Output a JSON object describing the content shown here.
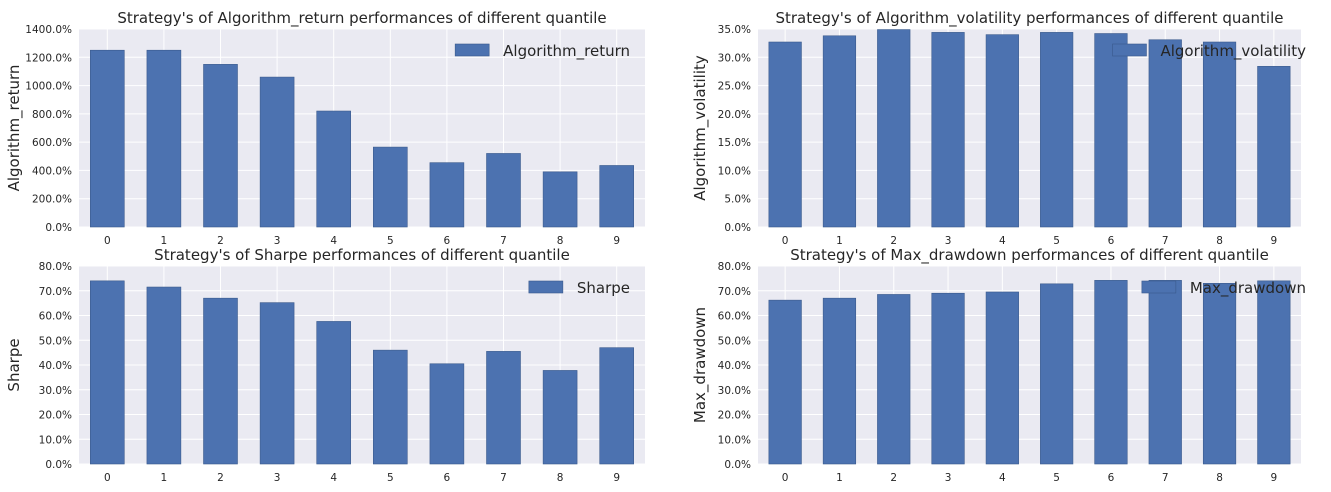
{
  "chart_data": [
    {
      "type": "bar",
      "title": "Strategy's of Algorithm_return performances of different quantile",
      "xlabel": "",
      "ylabel": "Algorithm_return",
      "categories": [
        "0",
        "1",
        "2",
        "3",
        "4",
        "5",
        "6",
        "7",
        "8",
        "9"
      ],
      "series": [
        {
          "name": "Algorithm_return",
          "values": [
            1250,
            1250,
            1150,
            1060,
            820,
            565,
            455,
            520,
            390,
            435
          ]
        }
      ],
      "ylim": [
        0,
        1400
      ],
      "yticks": [
        0,
        200,
        400,
        600,
        800,
        1000,
        1200,
        1400
      ],
      "ytick_labels": [
        "0.0%",
        "200.0%",
        "400.0%",
        "600.0%",
        "800.0%",
        "1000.0%",
        "1200.0%",
        "1400.0%"
      ],
      "grid": true,
      "legend": "top-right",
      "color": "#4c72b0"
    },
    {
      "type": "bar",
      "title": "Strategy's of Algorithm_volatility performances of different quantile",
      "xlabel": "",
      "ylabel": "Algorithm_volatility",
      "categories": [
        "0",
        "1",
        "2",
        "3",
        "4",
        "5",
        "6",
        "7",
        "8",
        "9"
      ],
      "series": [
        {
          "name": "Algorithm_volatility",
          "values": [
            32.7,
            33.8,
            34.9,
            34.4,
            34.0,
            34.4,
            34.2,
            33.1,
            32.7,
            28.4
          ]
        }
      ],
      "ylim": [
        0,
        35
      ],
      "yticks": [
        0,
        5,
        10,
        15,
        20,
        25,
        30,
        35
      ],
      "ytick_labels": [
        "0.0%",
        "5.0%",
        "10.0%",
        "15.0%",
        "20.0%",
        "25.0%",
        "30.0%",
        "35.0%"
      ],
      "grid": true,
      "legend": "top-right",
      "color": "#4c72b0"
    },
    {
      "type": "bar",
      "title": "Strategy's of Sharpe performances of different quantile",
      "xlabel": "",
      "ylabel": "Sharpe",
      "categories": [
        "0",
        "1",
        "2",
        "3",
        "4",
        "5",
        "6",
        "7",
        "8",
        "9"
      ],
      "series": [
        {
          "name": "Sharpe",
          "values": [
            74.0,
            71.5,
            67.0,
            65.2,
            57.6,
            46.0,
            40.5,
            45.5,
            37.8,
            47.0
          ]
        }
      ],
      "ylim": [
        0,
        80
      ],
      "yticks": [
        0,
        10,
        20,
        30,
        40,
        50,
        60,
        70,
        80
      ],
      "ytick_labels": [
        "0.0%",
        "10.0%",
        "20.0%",
        "30.0%",
        "40.0%",
        "50.0%",
        "60.0%",
        "70.0%",
        "80.0%"
      ],
      "grid": true,
      "legend": "top-right",
      "color": "#4c72b0"
    },
    {
      "type": "bar",
      "title": "Strategy's of Max_drawdown performances of different quantile",
      "xlabel": "",
      "ylabel": "Max_drawdown",
      "categories": [
        "0",
        "1",
        "2",
        "3",
        "4",
        "5",
        "6",
        "7",
        "8",
        "9"
      ],
      "series": [
        {
          "name": "Max_drawdown",
          "values": [
            66.2,
            67.0,
            68.5,
            69.0,
            69.5,
            72.8,
            74.2,
            74.2,
            73.0,
            74.0
          ]
        }
      ],
      "ylim": [
        0,
        80
      ],
      "yticks": [
        0,
        10,
        20,
        30,
        40,
        50,
        60,
        70,
        80
      ],
      "ytick_labels": [
        "0.0%",
        "10.0%",
        "20.0%",
        "30.0%",
        "40.0%",
        "50.0%",
        "60.0%",
        "70.0%",
        "80.0%"
      ],
      "grid": true,
      "legend": "top-right",
      "color": "#4c72b0"
    }
  ]
}
